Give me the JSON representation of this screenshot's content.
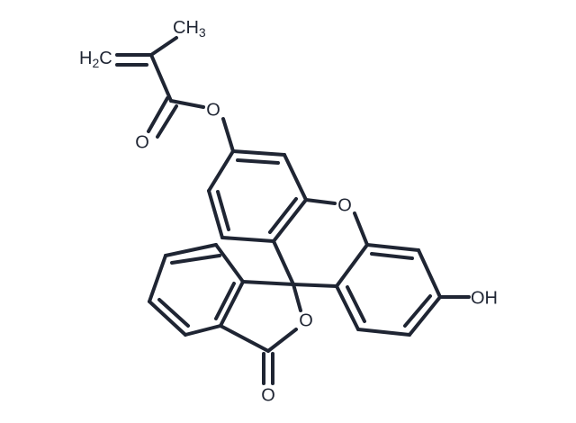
{
  "atoms": {
    "methyl": [
      "CH",
      "3"
    ],
    "methylene": [
      "H",
      "2",
      "C"
    ],
    "ester_oxygen": "O",
    "ester_carbonyl_oxygen": "O",
    "ring_oxygen": "O",
    "lactone_oxygen": "O",
    "lactone_carbonyl_oxygen": "O",
    "hydroxyl": "OH"
  }
}
